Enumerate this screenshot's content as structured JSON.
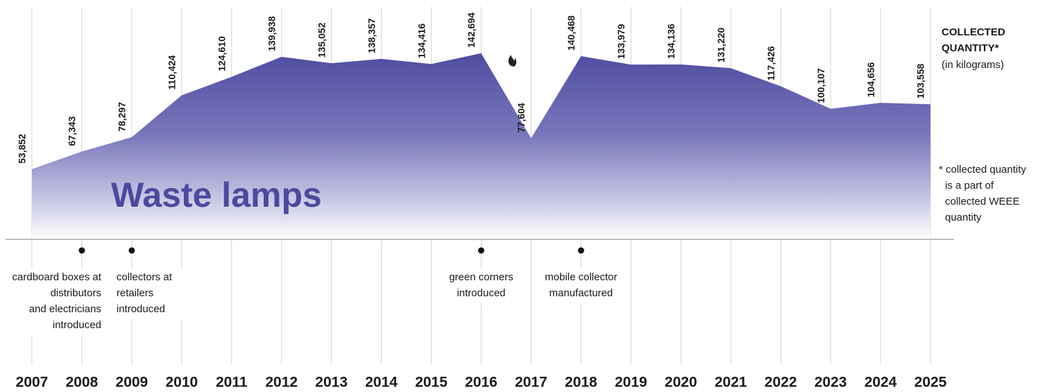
{
  "chart_data": {
    "type": "area",
    "title": "Waste lamps",
    "legend_title": "COLLECTED QUANTITY*",
    "unit_label": "(in kilograms)",
    "footnote": [
      "* collected quantity",
      "is a part of",
      "collected WEEE",
      "quantity"
    ],
    "categories": [
      "2007",
      "2008",
      "2009",
      "2010",
      "2011",
      "2012",
      "2013",
      "2014",
      "2015",
      "2016",
      "2017",
      "2018",
      "2019",
      "2020",
      "2021",
      "2022",
      "2023",
      "2024",
      "2025"
    ],
    "values": [
      53852,
      67343,
      78297,
      110424,
      124610,
      139938,
      135052,
      138357,
      134416,
      142694,
      77604,
      140468,
      133979,
      134136,
      131220,
      117426,
      100107,
      104656,
      103558
    ],
    "value_labels": [
      "53,852",
      "67,343",
      "78,297",
      "110,424",
      "124,610",
      "139,938",
      "135,052",
      "138,357",
      "134,416",
      "142,694",
      "77,604",
      "140,468",
      "133,979",
      "134,136",
      "131,220",
      "117,426",
      "100,107",
      "104,656",
      "103,558"
    ],
    "color": "#4b4a9f",
    "ylim": [
      0,
      150000
    ],
    "annotations": [
      {
        "category": "2008",
        "align": "end",
        "lines": [
          "cardboard boxes at",
          "distributors",
          "and electricians",
          "introduced"
        ]
      },
      {
        "category": "2009",
        "align": "start",
        "lines": [
          "collectors at",
          "retailers",
          "introduced"
        ]
      },
      {
        "category": "2016",
        "align": "middle",
        "lines": [
          "green corners",
          "introduced"
        ]
      },
      {
        "category": "2018",
        "align": "middle",
        "lines": [
          "mobile collector",
          "manufactured"
        ]
      }
    ]
  }
}
